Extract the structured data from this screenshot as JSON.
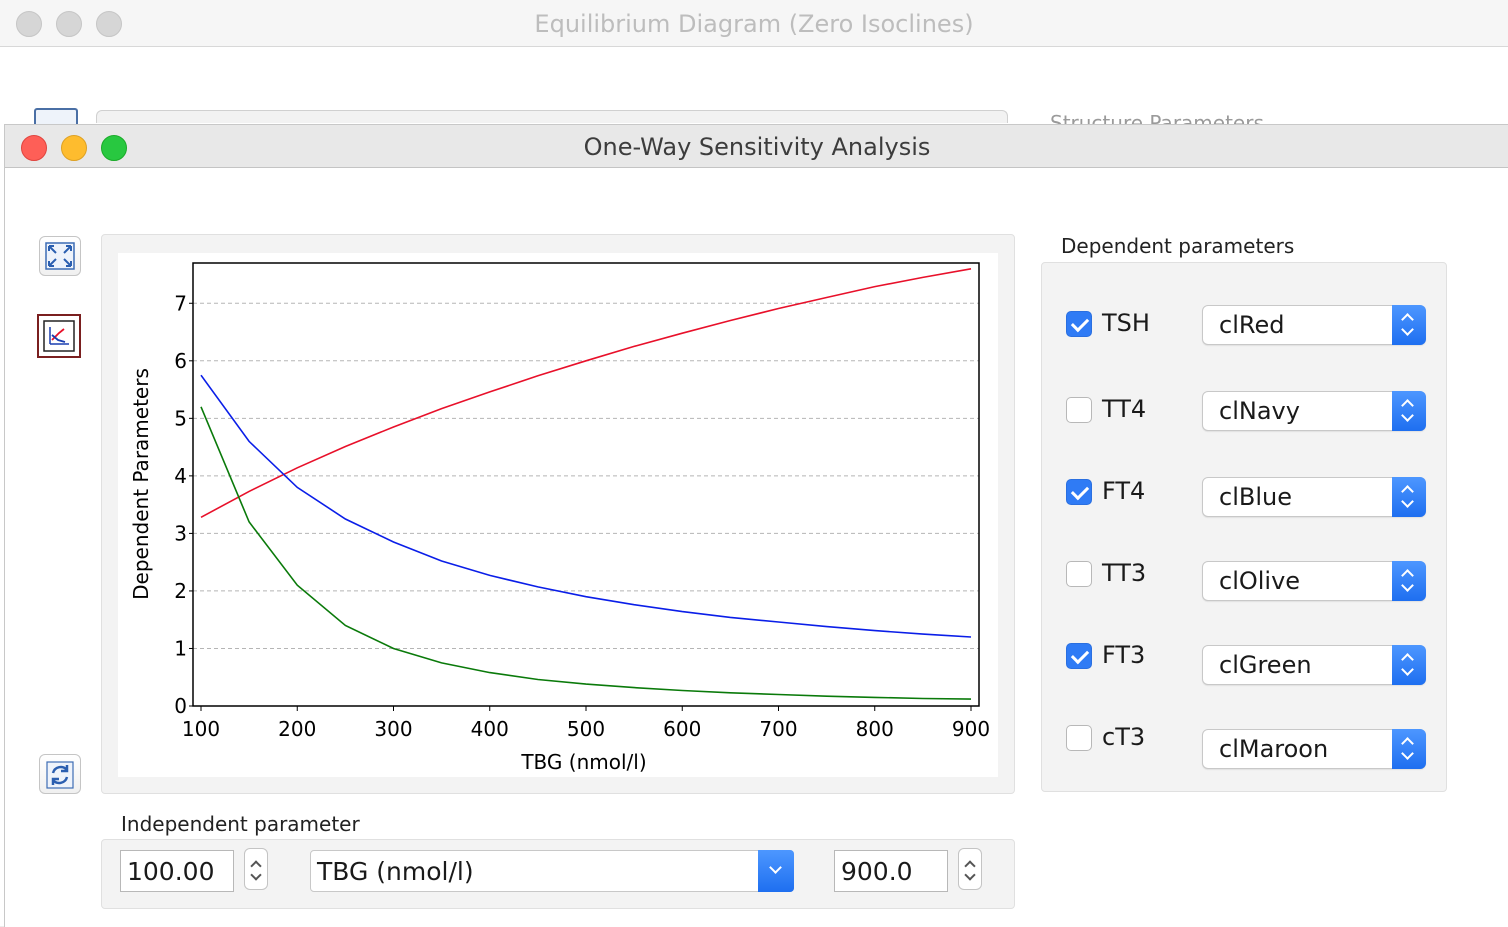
{
  "background_window": {
    "title": "Equilibrium Diagram (Zero Isoclines)",
    "panel_label": "Structure Parameters"
  },
  "window": {
    "title": "One-Way Sensitivity Analysis"
  },
  "toolbar": {
    "fullscreen_icon": "expand-arrows-icon",
    "chart_icon": "chart-icon",
    "refresh_icon": "refresh-icon"
  },
  "dependent": {
    "title": "Dependent parameters",
    "items": [
      {
        "label": "TSH",
        "checked": true,
        "color_name": "clRed",
        "color": "#e8102a"
      },
      {
        "label": "TT4",
        "checked": false,
        "color_name": "clNavy",
        "color": "#000080"
      },
      {
        "label": "FT4",
        "checked": true,
        "color_name": "clBlue",
        "color": "#0a1ee8"
      },
      {
        "label": "TT3",
        "checked": false,
        "color_name": "clOlive",
        "color": "#808000"
      },
      {
        "label": "FT3",
        "checked": true,
        "color_name": "clGreen",
        "color": "#0a7a0a"
      },
      {
        "label": "cT3",
        "checked": false,
        "color_name": "clMaroon",
        "color": "#800000"
      }
    ]
  },
  "independent": {
    "title": "Independent parameter",
    "min_value": "100.00",
    "parameter": "TBG (nmol/l)",
    "max_value": "900.0"
  },
  "chart_data": {
    "type": "line",
    "xlabel": "TBG (nmol/l)",
    "ylabel": "Dependent Parameters",
    "xlim": [
      100,
      900
    ],
    "ylim": [
      0,
      7.7
    ],
    "xticks": [
      100,
      200,
      300,
      400,
      500,
      600,
      700,
      800,
      900
    ],
    "yticks": [
      0,
      1,
      2,
      3,
      4,
      5,
      6,
      7
    ],
    "grid": "horizontal dashed",
    "x": [
      100,
      150,
      200,
      250,
      300,
      350,
      400,
      450,
      500,
      550,
      600,
      650,
      700,
      750,
      800,
      850,
      900
    ],
    "series": [
      {
        "name": "TSH",
        "color": "#e8102a",
        "values": [
          3.28,
          3.73,
          4.14,
          4.51,
          4.85,
          5.17,
          5.46,
          5.74,
          6.0,
          6.25,
          6.48,
          6.7,
          6.91,
          7.1,
          7.29,
          7.45,
          7.6
        ]
      },
      {
        "name": "FT4",
        "color": "#0a1ee8",
        "values": [
          5.75,
          4.6,
          3.8,
          3.25,
          2.85,
          2.52,
          2.27,
          2.07,
          1.9,
          1.76,
          1.64,
          1.54,
          1.46,
          1.38,
          1.31,
          1.25,
          1.2
        ]
      },
      {
        "name": "FT3",
        "color": "#0a7a0a",
        "values": [
          5.2,
          3.2,
          2.1,
          1.4,
          1.0,
          0.75,
          0.58,
          0.46,
          0.38,
          0.32,
          0.27,
          0.23,
          0.2,
          0.17,
          0.15,
          0.13,
          0.12
        ]
      }
    ]
  }
}
